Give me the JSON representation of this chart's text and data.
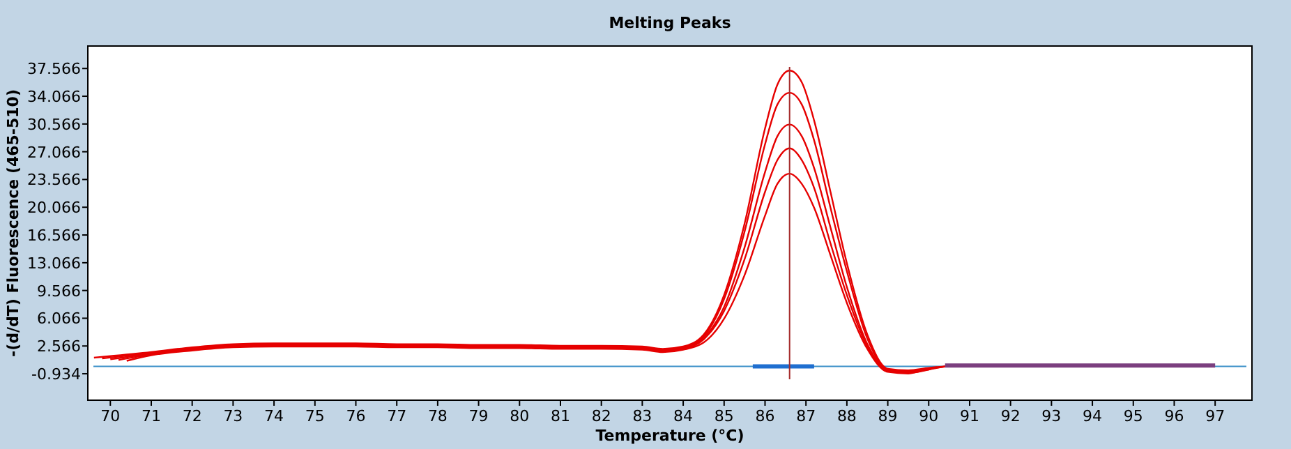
{
  "chart_data": {
    "type": "line",
    "title": "Melting Peaks",
    "xlabel": "Temperature (°C)",
    "ylabel": "-(d/dT) Fluorescence (465-510)",
    "series": [
      {
        "color": "#e60000",
        "x": [
          69.6,
          71,
          72,
          73,
          74,
          75,
          76,
          77,
          78,
          79,
          80,
          81,
          82,
          83,
          83.5,
          84,
          84.5,
          85,
          85.5,
          86,
          86.3,
          86.6,
          86.9,
          87.2,
          87.6,
          88,
          88.5,
          89,
          89.5,
          90,
          90.8
        ],
        "values": [
          1.1,
          1.8,
          2.4,
          2.8,
          2.9,
          2.9,
          2.9,
          2.8,
          2.8,
          2.7,
          2.7,
          2.6,
          2.6,
          2.5,
          2.2,
          2.5,
          4,
          9,
          18,
          30,
          35.5,
          37.3,
          35.8,
          31,
          22,
          13,
          4,
          -0.3,
          -0.5,
          -0.2,
          0.1
        ]
      },
      {
        "color": "#e60000",
        "x": [
          69.8,
          71,
          72,
          73,
          74,
          75,
          76,
          77,
          78,
          79,
          80,
          81,
          82,
          83,
          83.5,
          84,
          84.5,
          85,
          85.5,
          86,
          86.3,
          86.6,
          86.9,
          87.2,
          87.6,
          88,
          88.5,
          89,
          89.5,
          90,
          90.6
        ],
        "values": [
          1.0,
          1.7,
          2.3,
          2.7,
          2.8,
          2.8,
          2.8,
          2.7,
          2.7,
          2.6,
          2.6,
          2.5,
          2.5,
          2.4,
          2.1,
          2.4,
          3.8,
          8.5,
          17,
          28,
          33,
          34.5,
          33,
          28.5,
          20,
          12,
          3.5,
          -0.4,
          -0.6,
          -0.3,
          0.1
        ]
      },
      {
        "color": "#e60000",
        "x": [
          70,
          71,
          72,
          73,
          74,
          75,
          76,
          77,
          78,
          79,
          80,
          81,
          82,
          83,
          83.5,
          84,
          84.5,
          85,
          85.5,
          86,
          86.3,
          86.6,
          86.9,
          87.2,
          87.6,
          88,
          88.5,
          89,
          89.5,
          90,
          90.4
        ],
        "values": [
          0.9,
          1.6,
          2.2,
          2.6,
          2.7,
          2.7,
          2.7,
          2.6,
          2.6,
          2.5,
          2.5,
          2.4,
          2.4,
          2.3,
          2.0,
          2.3,
          3.6,
          7.5,
          15,
          24.5,
          29,
          30.5,
          29,
          25,
          17.5,
          10,
          2.8,
          -0.5,
          -0.7,
          -0.4,
          0
        ]
      },
      {
        "color": "#e60000",
        "x": [
          70.2,
          71,
          72,
          73,
          74,
          75,
          76,
          77,
          78,
          79,
          80,
          81,
          82,
          83,
          83.5,
          84,
          84.5,
          85,
          85.5,
          86,
          86.3,
          86.6,
          86.9,
          87.2,
          87.6,
          88,
          88.5,
          89,
          89.5,
          90,
          90.2
        ],
        "values": [
          0.8,
          1.5,
          2.1,
          2.5,
          2.6,
          2.6,
          2.6,
          2.5,
          2.5,
          2.4,
          2.4,
          2.3,
          2.3,
          2.2,
          1.9,
          2.2,
          3.4,
          7,
          13.5,
          22,
          26,
          27.5,
          26,
          22.5,
          15.5,
          9,
          2.5,
          -0.6,
          -0.8,
          -0.4,
          -0.1
        ]
      },
      {
        "color": "#e60000",
        "x": [
          70.4,
          71,
          72,
          73,
          74,
          75,
          76,
          77,
          78,
          79,
          80,
          81,
          82,
          83,
          83.5,
          84,
          84.5,
          85,
          85.5,
          86,
          86.3,
          86.6,
          86.9,
          87.2,
          87.6,
          88,
          88.5,
          89,
          89.5,
          89.8,
          90.1
        ],
        "values": [
          0.7,
          1.4,
          2.0,
          2.4,
          2.5,
          2.5,
          2.5,
          2.4,
          2.4,
          2.3,
          2.3,
          2.2,
          2.2,
          2.1,
          1.8,
          2.1,
          3.0,
          6,
          11.5,
          19,
          23,
          24.3,
          23,
          20,
          14,
          8,
          2.2,
          -0.7,
          -0.9,
          -0.6,
          -0.2
        ]
      },
      {
        "color": "#7b3f7f",
        "x": [
          90.4,
          97
        ],
        "values": [
          0.1,
          0.1
        ]
      },
      {
        "color": "#1f6fd0",
        "x": [
          85.7,
          87.2
        ],
        "values": [
          0,
          0
        ]
      }
    ],
    "xlim": [
      69.45,
      97.9
    ],
    "ylim": [
      -4.27,
      40.4
    ],
    "xticks": [
      70,
      71,
      72,
      73,
      74,
      75,
      76,
      77,
      78,
      79,
      80,
      81,
      82,
      83,
      84,
      85,
      86,
      87,
      88,
      89,
      90,
      91,
      92,
      93,
      94,
      95,
      96,
      97
    ],
    "yticks": [
      -0.934,
      2.566,
      6.066,
      9.566,
      13.066,
      16.566,
      20.066,
      23.566,
      27.066,
      30.566,
      34.066,
      37.566
    ],
    "ref_lines": [
      {
        "axis": "y",
        "value": 0,
        "color": "#3a8fc8"
      },
      {
        "axis": "x",
        "value": 86.6,
        "color": "#a52a2a"
      }
    ],
    "marker": "none",
    "line_style": "solid",
    "grid": false
  }
}
